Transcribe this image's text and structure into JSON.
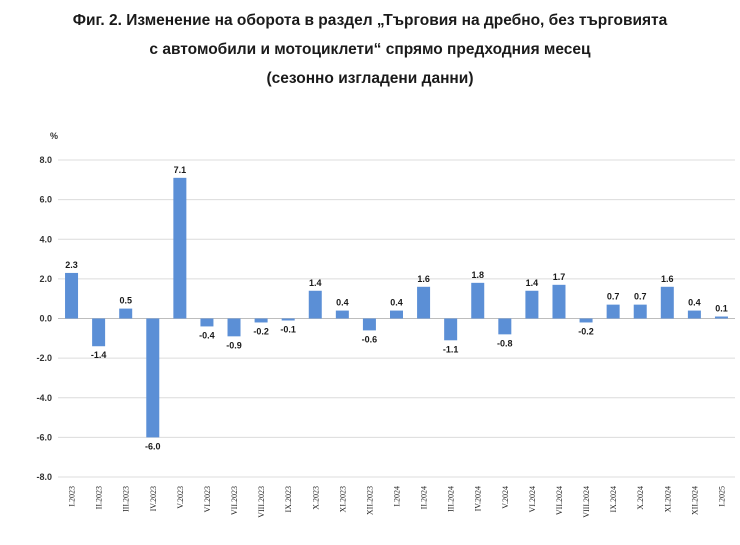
{
  "chart_data": {
    "type": "bar",
    "title": "Фиг. 2. Изменение на оборота в раздел „Търговия на дребно, без търговията с автомобили и мотоциклети“ спрямо предходния месец (сезонно изгладени данни)",
    "title_lines": [
      "Фиг. 2. Изменение на оборота в раздел „Търговия на дребно, без търговията",
      "с автомобили и мотоциклети“ спрямо предходния месец",
      "(сезонно изгладени данни)"
    ],
    "ylabel": "%",
    "xlabel": "",
    "ylim": [
      -8.0,
      8.0
    ],
    "yticks": [
      "8.0",
      "6.0",
      "4.0",
      "2.0",
      "0.0",
      "-2.0",
      "-4.0",
      "-6.0",
      "-8.0"
    ],
    "ytick_values": [
      8,
      6,
      4,
      2,
      0,
      -2,
      -4,
      -6,
      -8
    ],
    "categories": [
      "I.2023",
      "II.2023",
      "III.2023",
      "IV.2023",
      "V.2023",
      "VI.2023",
      "VII.2023",
      "VIII.2023",
      "IX.2023",
      "X.2023",
      "XI.2023",
      "XII.2023",
      "I.2024",
      "II.2024",
      "III.2024",
      "IV.2024",
      "V.2024",
      "VI.2024",
      "VII.2024",
      "VIII.2024",
      "IX.2024",
      "X.2024",
      "XI.2024",
      "XII.2024",
      "I.2025"
    ],
    "values": [
      2.3,
      -1.4,
      0.5,
      -6.0,
      7.1,
      -0.4,
      -0.9,
      -0.2,
      -0.1,
      1.4,
      0.4,
      -0.6,
      0.4,
      1.6,
      -1.1,
      1.8,
      -0.8,
      1.4,
      1.7,
      -0.2,
      0.7,
      0.7,
      1.6,
      0.4,
      0.1
    ],
    "labels": [
      "2.3",
      "-1.4",
      "0.5",
      "-6.0",
      "7.1",
      "-0.4",
      "-0.9",
      "-0.2",
      "-0.1",
      "1.4",
      "0.4",
      "-0.6",
      "0.4",
      "1.6",
      "-1.1",
      "1.8",
      "-0.8",
      "1.4",
      "1.7",
      "-0.2",
      "0.7",
      "0.7",
      "1.6",
      "0.4",
      "0.1"
    ],
    "bar_color": "#5b8fd6",
    "grid": true
  }
}
